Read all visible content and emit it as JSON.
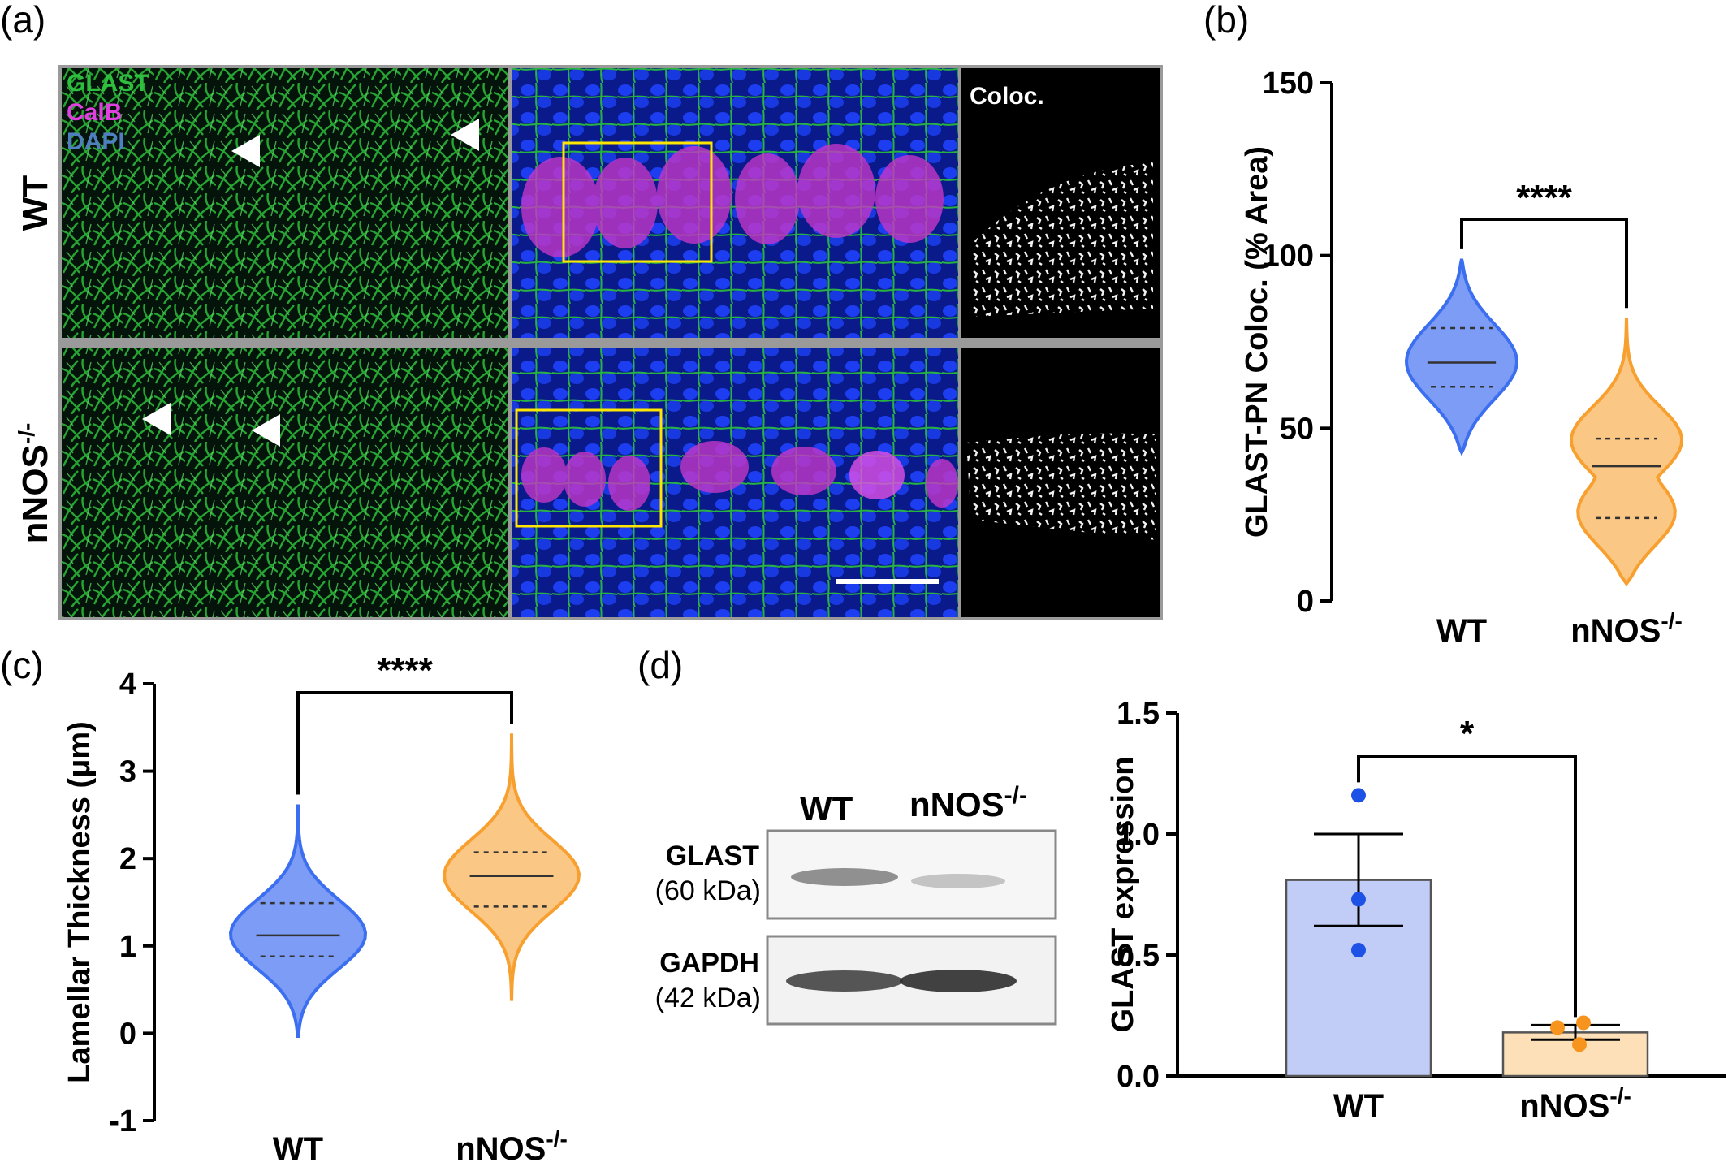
{
  "panels": {
    "a": {
      "letter": "(a)",
      "rows": [
        "WT",
        "nNOS",
        "-/-"
      ],
      "stain_labels": [
        "GLAST",
        "CalB",
        "DAPI"
      ],
      "stain_colors": [
        "#2fbf3f",
        "#e040e0",
        "#4f7fc0"
      ],
      "coloc_label": "Coloc."
    },
    "b": {
      "letter": "(b)"
    },
    "c": {
      "letter": "(c)"
    },
    "d": {
      "letter": "(d)",
      "blot": {
        "lane_labels": [
          "WT",
          "nNOS",
          "-/-"
        ],
        "bands": [
          {
            "name": "GLAST",
            "size": "(60 kDa)"
          },
          {
            "name": "GAPDH",
            "size": "(42 kDa)"
          }
        ]
      }
    }
  },
  "chart_data": [
    {
      "id": "b",
      "type": "violin",
      "ylabel": "GLAST-PN Coloc. (% Area)",
      "ylim": [
        0,
        150
      ],
      "yticks": [
        0,
        50,
        100,
        150
      ],
      "categories": [
        "WT",
        "nNOS",
        "-/-"
      ],
      "significance": "****",
      "colors": {
        "WT": "#3b6ff0",
        "nNOS": "#f7a030"
      },
      "series": [
        {
          "category": "WT",
          "min": 43,
          "max": 99,
          "q1": 62,
          "median": 69,
          "q3": 79
        },
        {
          "category": "nNOS",
          "min": 5,
          "max": 82,
          "q1": 24,
          "median": 39,
          "q3": 47
        }
      ]
    },
    {
      "id": "c",
      "type": "violin",
      "ylabel": "Lamellar Thickness (μm)",
      "ylim": [
        -1,
        4
      ],
      "yticks": [
        -1,
        0,
        1,
        2,
        3,
        4
      ],
      "categories": [
        "WT",
        "nNOS",
        "-/-"
      ],
      "significance": "****",
      "colors": {
        "WT": "#3b6ff0",
        "nNOS": "#f7a030"
      },
      "series": [
        {
          "category": "WT",
          "min": -0.05,
          "max": 2.62,
          "q1": 0.88,
          "median": 1.12,
          "q3": 1.49
        },
        {
          "category": "nNOS",
          "min": 0.37,
          "max": 3.43,
          "q1": 1.45,
          "median": 1.8,
          "q3": 2.07
        }
      ]
    },
    {
      "id": "d",
      "type": "bar",
      "ylabel": "GLAST expression",
      "ylim": [
        0,
        1.5
      ],
      "yticks": [
        "0.0",
        "0.5",
        "1.0",
        "1.5"
      ],
      "categories": [
        "WT",
        "nNOS",
        "-/-"
      ],
      "significance": "*",
      "series": [
        {
          "category": "WT",
          "mean": 0.81,
          "sem": 0.19,
          "points": [
            1.16,
            0.73,
            0.52
          ],
          "fill": "#c2cdf7",
          "dot": "#1e52e6"
        },
        {
          "category": "nNOS",
          "mean": 0.18,
          "sem": 0.03,
          "points": [
            0.22,
            0.2,
            0.13
          ],
          "fill": "#fde0b8",
          "dot": "#f7941d"
        }
      ]
    }
  ]
}
